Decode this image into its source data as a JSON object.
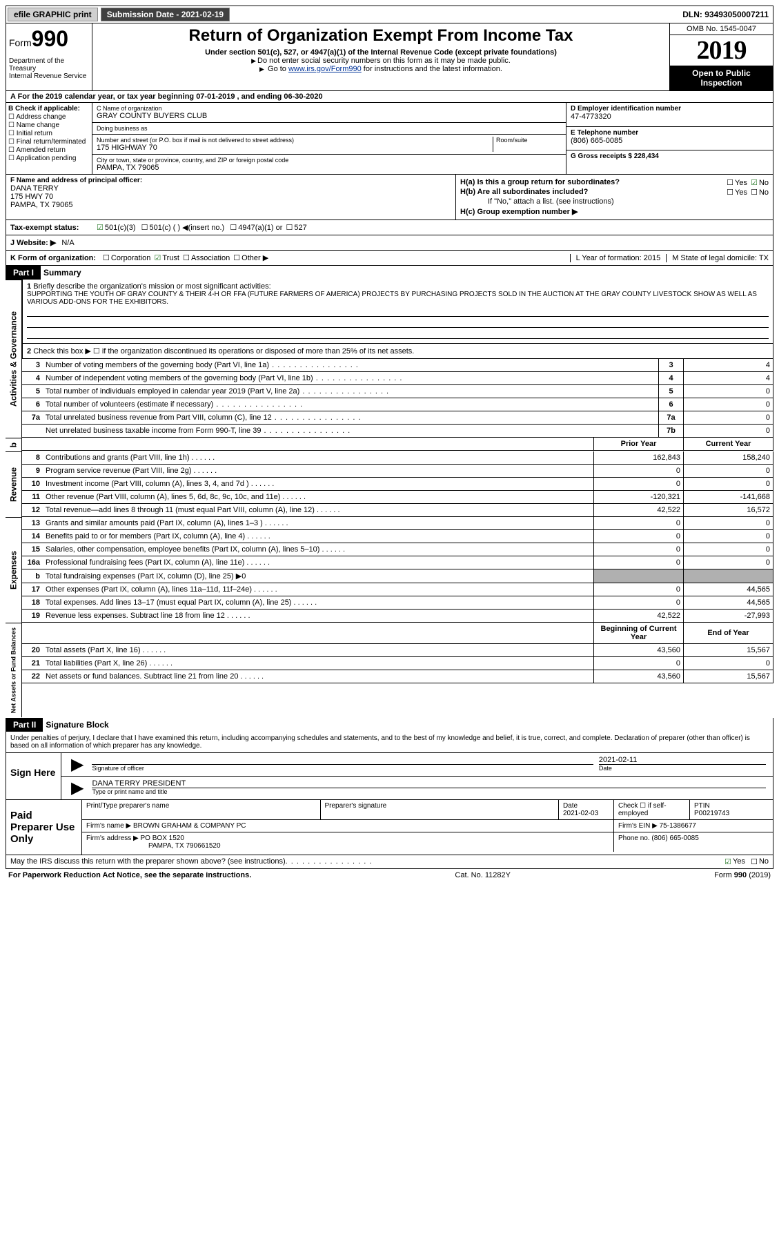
{
  "topbar": {
    "efile": "efile GRAPHIC print",
    "submission_label": "Submission Date - 2021-02-19",
    "dln": "DLN: 93493050007211"
  },
  "header": {
    "form_label": "Form",
    "form_num": "990",
    "dept": "Department of the Treasury\nInternal Revenue Service",
    "title": "Return of Organization Exempt From Income Tax",
    "subtitle": "Under section 501(c), 527, or 4947(a)(1) of the Internal Revenue Code (except private foundations)",
    "note1": "Do not enter social security numbers on this form as it may be made public.",
    "note2_pre": "Go to ",
    "note2_link": "www.irs.gov/Form990",
    "note2_post": " for instructions and the latest information.",
    "omb": "OMB No. 1545-0047",
    "year": "2019",
    "open": "Open to Public Inspection"
  },
  "row_a": "A For the 2019 calendar year, or tax year beginning 07-01-2019   , and ending 06-30-2020",
  "b": {
    "label": "B Check if applicable:",
    "opts": [
      "Address change",
      "Name change",
      "Initial return",
      "Final return/terminated",
      "Amended return",
      "Application pending"
    ]
  },
  "c": {
    "name_lbl": "C Name of organization",
    "name": "GRAY COUNTY BUYERS CLUB",
    "dba_lbl": "Doing business as",
    "dba": "",
    "addr_lbl": "Number and street (or P.O. box if mail is not delivered to street address)",
    "room_lbl": "Room/suite",
    "addr": "175 HIGHWAY 70",
    "city_lbl": "City or town, state or province, country, and ZIP or foreign postal code",
    "city": "PAMPA, TX  79065"
  },
  "d": {
    "ein_lbl": "D Employer identification number",
    "ein": "47-4773320",
    "phone_lbl": "E Telephone number",
    "phone": "(806) 665-0085",
    "gross_lbl": "G Gross receipts $ 228,434"
  },
  "f": {
    "lbl": "F  Name and address of principal officer:",
    "name": "DANA TERRY",
    "addr1": "175 HWY 70",
    "addr2": "PAMPA, TX  79065"
  },
  "h": {
    "a_lbl": "H(a)  Is this a group return for subordinates?",
    "b_lbl": "H(b)  Are all subordinates included?",
    "b_note": "If \"No,\" attach a list. (see instructions)",
    "c_lbl": "H(c)  Group exemption number ▶"
  },
  "i": {
    "lbl": "Tax-exempt status:",
    "opt1": "501(c)(3)",
    "opt2": "501(c) (  ) ◀(insert no.)",
    "opt3": "4947(a)(1) or",
    "opt4": "527"
  },
  "j": {
    "lbl": "J   Website: ▶",
    "val": "N/A"
  },
  "k": {
    "lbl": "K Form of organization:",
    "corp": "Corporation",
    "trust": "Trust",
    "assoc": "Association",
    "other": "Other ▶"
  },
  "l": {
    "lbl": "L Year of formation: 2015"
  },
  "m": {
    "lbl": "M State of legal domicile: TX"
  },
  "part1": {
    "hdr": "Part I",
    "title": "Summary",
    "q1_lbl": "Briefly describe the organization's mission or most significant activities:",
    "q1_text": "SUPPORTING THE YOUTH OF GRAY COUNTY & THEIR 4-H OR FFA (FUTURE FARMERS OF AMERICA) PROJECTS BY PURCHASING PROJECTS SOLD IN THE AUCTION AT THE GRAY COUNTY LIVESTOCK SHOW AS WELL AS VARIOUS ADD-ONS FOR THE EXHIBITORS.",
    "q2": "Check this box ▶ ☐  if the organization discontinued its operations or disposed of more than 25% of its net assets.",
    "rows_gov": [
      {
        "n": "3",
        "d": "Number of voting members of the governing body (Part VI, line 1a)",
        "b": "3",
        "v": "4"
      },
      {
        "n": "4",
        "d": "Number of independent voting members of the governing body (Part VI, line 1b)",
        "b": "4",
        "v": "4"
      },
      {
        "n": "5",
        "d": "Total number of individuals employed in calendar year 2019 (Part V, line 2a)",
        "b": "5",
        "v": "0"
      },
      {
        "n": "6",
        "d": "Total number of volunteers (estimate if necessary)",
        "b": "6",
        "v": "0"
      },
      {
        "n": "7a",
        "d": "Total unrelated business revenue from Part VIII, column (C), line 12",
        "b": "7a",
        "v": "0"
      },
      {
        "n": "",
        "d": "Net unrelated business taxable income from Form 990-T, line 39",
        "b": "7b",
        "v": "0"
      }
    ],
    "col_hdr_prior": "Prior Year",
    "col_hdr_curr": "Current Year",
    "rows_rev": [
      {
        "n": "8",
        "d": "Contributions and grants (Part VIII, line 1h)",
        "p": "162,843",
        "c": "158,240"
      },
      {
        "n": "9",
        "d": "Program service revenue (Part VIII, line 2g)",
        "p": "0",
        "c": "0"
      },
      {
        "n": "10",
        "d": "Investment income (Part VIII, column (A), lines 3, 4, and 7d )",
        "p": "0",
        "c": "0"
      },
      {
        "n": "11",
        "d": "Other revenue (Part VIII, column (A), lines 5, 6d, 8c, 9c, 10c, and 11e)",
        "p": "-120,321",
        "c": "-141,668"
      },
      {
        "n": "12",
        "d": "Total revenue—add lines 8 through 11 (must equal Part VIII, column (A), line 12)",
        "p": "42,522",
        "c": "16,572"
      }
    ],
    "rows_exp": [
      {
        "n": "13",
        "d": "Grants and similar amounts paid (Part IX, column (A), lines 1–3 )",
        "p": "0",
        "c": "0"
      },
      {
        "n": "14",
        "d": "Benefits paid to or for members (Part IX, column (A), line 4)",
        "p": "0",
        "c": "0"
      },
      {
        "n": "15",
        "d": "Salaries, other compensation, employee benefits (Part IX, column (A), lines 5–10)",
        "p": "0",
        "c": "0"
      },
      {
        "n": "16a",
        "d": "Professional fundraising fees (Part IX, column (A), line 11e)",
        "p": "0",
        "c": "0"
      }
    ],
    "row_16b": {
      "n": "b",
      "d": "Total fundraising expenses (Part IX, column (D), line 25) ▶0"
    },
    "rows_exp2": [
      {
        "n": "17",
        "d": "Other expenses (Part IX, column (A), lines 11a–11d, 11f–24e)",
        "p": "0",
        "c": "44,565"
      },
      {
        "n": "18",
        "d": "Total expenses. Add lines 13–17 (must equal Part IX, column (A), line 25)",
        "p": "0",
        "c": "44,565"
      },
      {
        "n": "19",
        "d": "Revenue less expenses. Subtract line 18 from line 12",
        "p": "42,522",
        "c": "-27,993"
      }
    ],
    "col_hdr_beg": "Beginning of Current Year",
    "col_hdr_end": "End of Year",
    "rows_net": [
      {
        "n": "20",
        "d": "Total assets (Part X, line 16)",
        "p": "43,560",
        "c": "15,567"
      },
      {
        "n": "21",
        "d": "Total liabilities (Part X, line 26)",
        "p": "0",
        "c": "0"
      },
      {
        "n": "22",
        "d": "Net assets or fund balances. Subtract line 21 from line 20",
        "p": "43,560",
        "c": "15,567"
      }
    ]
  },
  "side_labels": {
    "gov": "Activities & Governance",
    "rev": "Revenue",
    "exp": "Expenses",
    "net": "Net Assets or Fund Balances"
  },
  "part2": {
    "hdr": "Part II",
    "title": "Signature Block",
    "decl": "Under penalties of perjury, I declare that I have examined this return, including accompanying schedules and statements, and to the best of my knowledge and belief, it is true, correct, and complete. Declaration of preparer (other than officer) is based on all information of which preparer has any knowledge.",
    "sign_here": "Sign Here",
    "sig_officer": "Signature of officer",
    "date_lbl": "Date",
    "date": "2021-02-11",
    "name_title": "DANA TERRY PRESIDENT",
    "name_title_lbl": "Type or print name and title"
  },
  "paid": {
    "label": "Paid Preparer Use Only",
    "r1": {
      "preparer_name_lbl": "Print/Type preparer's name",
      "sig_lbl": "Preparer's signature",
      "date_lbl": "Date",
      "date": "2021-02-03",
      "check_lbl": "Check ☐ if self-employed",
      "ptin_lbl": "PTIN",
      "ptin": "P00219743"
    },
    "r2": {
      "firm_lbl": "Firm's name   ▶",
      "firm": "BROWN GRAHAM & COMPANY PC",
      "ein_lbl": "Firm's EIN ▶",
      "ein": "75-1386677"
    },
    "r3": {
      "addr_lbl": "Firm's address ▶",
      "addr1": "PO BOX 1520",
      "addr2": "PAMPA, TX  790661520",
      "phone_lbl": "Phone no.",
      "phone": "(806) 665-0085"
    }
  },
  "discuss": "May the IRS discuss this return with the preparer shown above? (see instructions)",
  "footer": {
    "left": "For Paperwork Reduction Act Notice, see the separate instructions.",
    "mid": "Cat. No. 11282Y",
    "right": "Form 990 (2019)"
  }
}
